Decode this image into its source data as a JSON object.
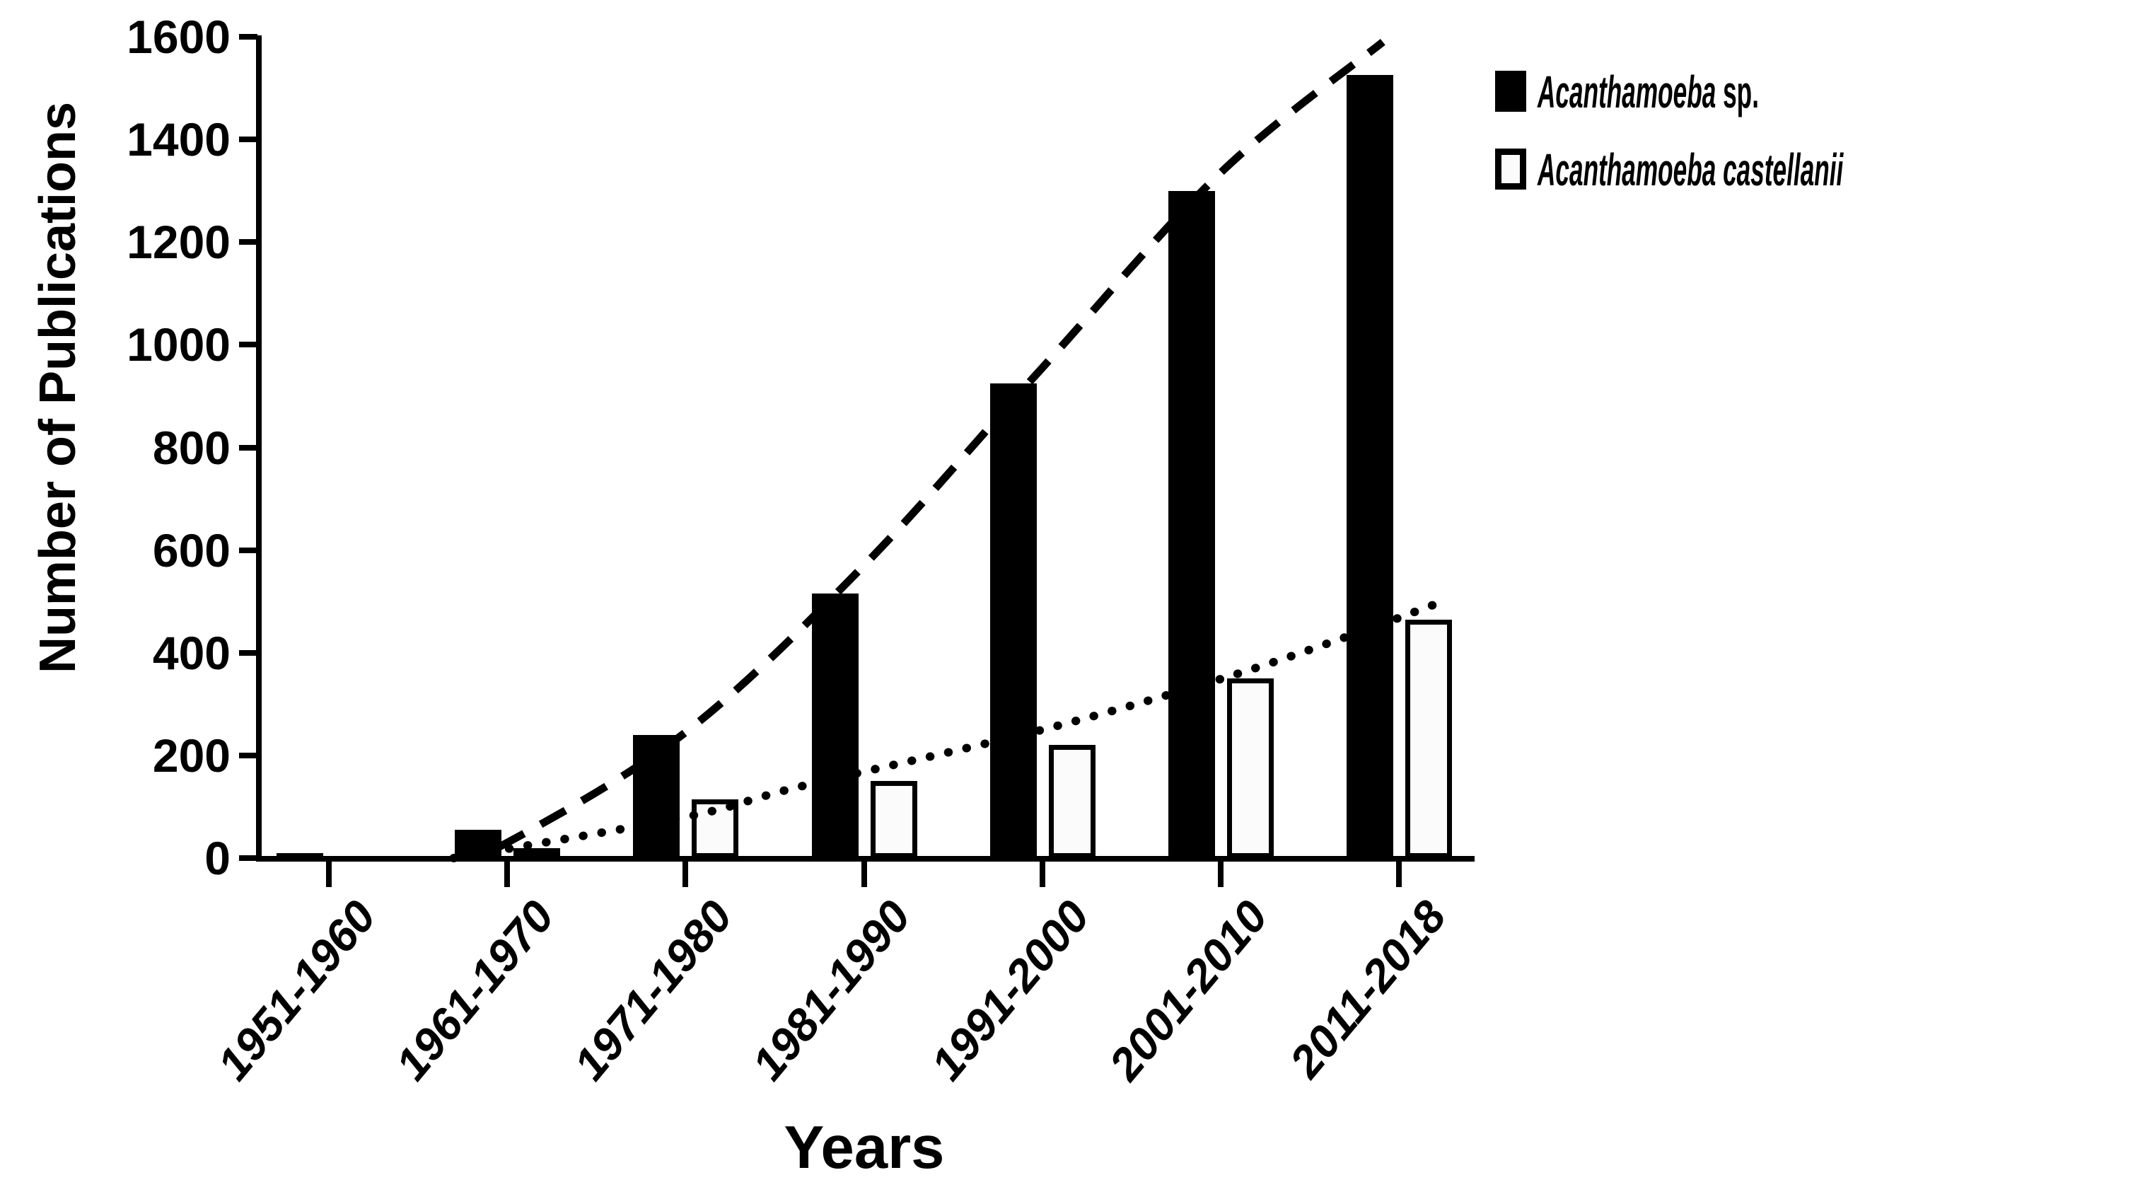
{
  "figure": {
    "background": "#ffffff",
    "ink_color": "#000000",
    "white_bar_fill": "#fbfbfb"
  },
  "chart_data": {
    "type": "bar",
    "title": "",
    "xlabel": "Years",
    "ylabel": "Number of Publications",
    "categories": [
      "1951-1960",
      "1961-1970",
      "1971-1980",
      "1981-1990",
      "1991-2000",
      "2001-2010",
      "2011-2018"
    ],
    "series": [
      {
        "name": "Acanthamoeba sp.",
        "swatch": "black-filled-square",
        "fill": "#000000",
        "values": [
          10,
          55,
          240,
          515,
          925,
          1300,
          1525
        ]
      },
      {
        "name": "Acanthamoeba castellanii",
        "swatch": "white-open-square",
        "fill": "#fbfbfb",
        "outline": "#000000",
        "values": [
          0,
          15,
          115,
          150,
          220,
          350,
          465
        ]
      }
    ],
    "y_axis": {
      "min": 0,
      "max": 1600,
      "tick_step": 200,
      "ticks": [
        "0",
        "200",
        "400",
        "600",
        "800",
        "1000",
        "1200",
        "1400",
        "1600"
      ]
    },
    "x_axis": {
      "tick_labels_rotated": true,
      "tick_labels_italic": true
    },
    "grid": "off",
    "legend_position": "top-right",
    "legend": {
      "entries": [
        {
          "italic_part": "Acanthamoeba",
          "regular_part": " sp.",
          "swatch": "black-filled-square"
        },
        {
          "italic_part": "Acanthamoeba castellanii",
          "regular_part": "",
          "swatch": "white-open-square"
        }
      ]
    },
    "trend_lines": [
      {
        "for_series": "Acanthamoeba sp.",
        "style": "dashed",
        "points_category_value": [
          [
            0.7,
            0
          ],
          [
            1.0,
            30
          ],
          [
            2.0,
            245
          ],
          [
            3.0,
            570
          ],
          [
            4.0,
            955
          ],
          [
            5.0,
            1335
          ],
          [
            5.91,
            1590
          ]
        ]
      },
      {
        "for_series": "Acanthamoeba castellanii",
        "style": "dotted",
        "points_category_value": [
          [
            0.7,
            0
          ],
          [
            2.0,
            80
          ],
          [
            2.64,
            139
          ],
          [
            4.0,
            250
          ],
          [
            5.03,
            352
          ],
          [
            5.73,
            434
          ],
          [
            6.23,
            498
          ]
        ]
      }
    ]
  }
}
